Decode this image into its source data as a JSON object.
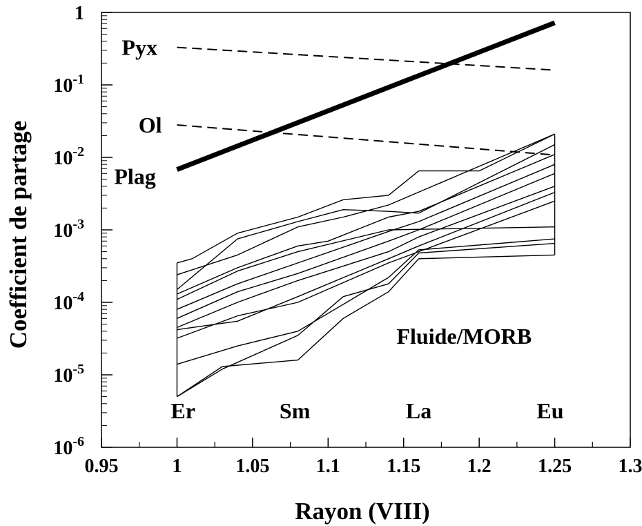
{
  "chart_data": {
    "type": "line",
    "title": "",
    "xlabel": "Rayon (VIII)",
    "ylabel": "Coefficient de partage",
    "xlim": [
      0.95,
      1.3
    ],
    "ylim": [
      1e-06,
      1
    ],
    "yscale": "log",
    "grid": false,
    "x_ticks": [
      0.95,
      1,
      1.05,
      1.1,
      1.15,
      1.2,
      1.25,
      1.3
    ],
    "x_tick_labels": [
      "0.95",
      "1",
      "1.05",
      "1.1",
      "1.15",
      "1.2",
      "1.25",
      "1.3"
    ],
    "y_tick_labels": [
      {
        "base": "10",
        "exp": "-6"
      },
      {
        "base": "10",
        "exp": "-5"
      },
      {
        "base": "10",
        "exp": "-4"
      },
      {
        "base": "10",
        "exp": "-3"
      },
      {
        "base": "10",
        "exp": "-2"
      },
      {
        "base": "10",
        "exp": "-1"
      },
      {
        "base": "1",
        "exp": ""
      }
    ],
    "element_labels": [
      {
        "text": "Er",
        "x": 1.004,
        "y": 2.5e-06
      },
      {
        "text": "Sm",
        "x": 1.078,
        "y": 2.5e-06
      },
      {
        "text": "La",
        "x": 1.16,
        "y": 2.5e-06
      },
      {
        "text": "Eu",
        "x": 1.247,
        "y": 2.5e-06
      }
    ],
    "annotations": [
      {
        "text": "Pyx",
        "x": 0.987,
        "y": 0.33
      },
      {
        "text": "Ol",
        "x": 0.99,
        "y": 0.028
      },
      {
        "text": "Plag",
        "x": 0.986,
        "y": 0.0055
      },
      {
        "text": "Fluide/MORB",
        "x": 1.19,
        "y": 3.4e-05
      }
    ],
    "series": [
      {
        "name": "Pyx",
        "style": "dashed",
        "x": [
          1.0,
          1.25
        ],
        "y": [
          0.33,
          0.16
        ]
      },
      {
        "name": "Ol",
        "style": "dashed",
        "x": [
          1.0,
          1.25
        ],
        "y": [
          0.028,
          0.0108
        ]
      },
      {
        "name": "Plag",
        "style": "thick",
        "x": [
          1.0,
          1.25
        ],
        "y": [
          0.0068,
          0.72
        ]
      },
      {
        "style": "thin",
        "x": [
          1.0,
          1.01,
          1.04,
          1.08,
          1.11,
          1.14,
          1.16,
          1.2,
          1.25
        ],
        "y": [
          0.00035,
          0.0004,
          0.0009,
          0.0015,
          0.0026,
          0.003,
          0.0065,
          0.0065,
          0.021
        ]
      },
      {
        "style": "thin",
        "x": [
          1.0,
          1.04,
          1.08,
          1.11,
          1.14,
          1.25
        ],
        "y": [
          0.00024,
          0.00045,
          0.0011,
          0.0015,
          0.0022,
          0.021
        ]
      },
      {
        "style": "thin",
        "x": [
          1.0,
          1.04,
          1.08,
          1.11,
          1.14,
          1.16,
          1.25
        ],
        "y": [
          0.00015,
          0.00075,
          0.0013,
          0.0019,
          0.0018,
          0.0017,
          0.015
        ]
      },
      {
        "style": "thin",
        "x": [
          1.0,
          1.04,
          1.08,
          1.1,
          1.14,
          1.16,
          1.25
        ],
        "y": [
          0.00013,
          0.0003,
          0.0006,
          0.0007,
          0.0015,
          0.0018,
          0.011
        ]
      },
      {
        "style": "thin",
        "x": [
          1.0,
          1.04,
          1.08,
          1.14,
          1.25
        ],
        "y": [
          0.00011,
          0.00027,
          0.0005,
          0.001,
          0.0011
        ]
      },
      {
        "style": "thin",
        "x": [
          1.0,
          1.04,
          1.08,
          1.14,
          1.16,
          1.25
        ],
        "y": [
          8e-05,
          0.00018,
          0.00035,
          0.00095,
          0.0013,
          0.008
        ]
      },
      {
        "style": "thin",
        "x": [
          1.0,
          1.04,
          1.08,
          1.14,
          1.16,
          1.25
        ],
        "y": [
          6e-05,
          0.00014,
          0.00025,
          0.0007,
          0.001,
          0.006
        ]
      },
      {
        "style": "thin",
        "x": [
          1.0,
          1.04,
          1.08,
          1.14,
          1.16,
          1.25
        ],
        "y": [
          4.5e-05,
          0.0001,
          0.0002,
          0.0005,
          0.0008,
          0.004
        ]
      },
      {
        "style": "thin",
        "x": [
          1.0,
          1.04,
          1.08,
          1.14,
          1.16,
          1.25
        ],
        "y": [
          4.2e-05,
          5.5e-05,
          0.00012,
          0.0004,
          0.0006,
          0.0033
        ]
      },
      {
        "style": "thin",
        "x": [
          1.0,
          1.04,
          1.08,
          1.14,
          1.16,
          1.25
        ],
        "y": [
          3.2e-05,
          6.5e-05,
          0.0001,
          0.00035,
          0.0005,
          0.0025
        ]
      },
      {
        "style": "thin",
        "x": [
          1.0,
          1.04,
          1.08,
          1.14,
          1.16,
          1.25
        ],
        "y": [
          1.4e-05,
          2.5e-05,
          4e-05,
          0.00022,
          0.00053,
          0.00075
        ]
      },
      {
        "style": "thin",
        "x": [
          1.0,
          1.03,
          1.08,
          1.11,
          1.14,
          1.16,
          1.25
        ],
        "y": [
          5e-06,
          1.2e-05,
          3.5e-05,
          0.00012,
          0.00018,
          0.00048,
          0.00065
        ]
      },
      {
        "style": "thin",
        "x": [
          1.0,
          1.03,
          1.08,
          1.11,
          1.14,
          1.16,
          1.25
        ],
        "y": [
          5e-06,
          1.3e-05,
          1.6e-05,
          6e-05,
          0.00014,
          0.0004,
          0.00045
        ]
      },
      {
        "style": "thin",
        "x": [
          1.0,
          1.0
        ],
        "y": [
          5e-06,
          0.00035
        ]
      },
      {
        "style": "thin",
        "x": [
          1.25,
          1.25
        ],
        "y": [
          0.00045,
          0.021
        ]
      }
    ]
  }
}
